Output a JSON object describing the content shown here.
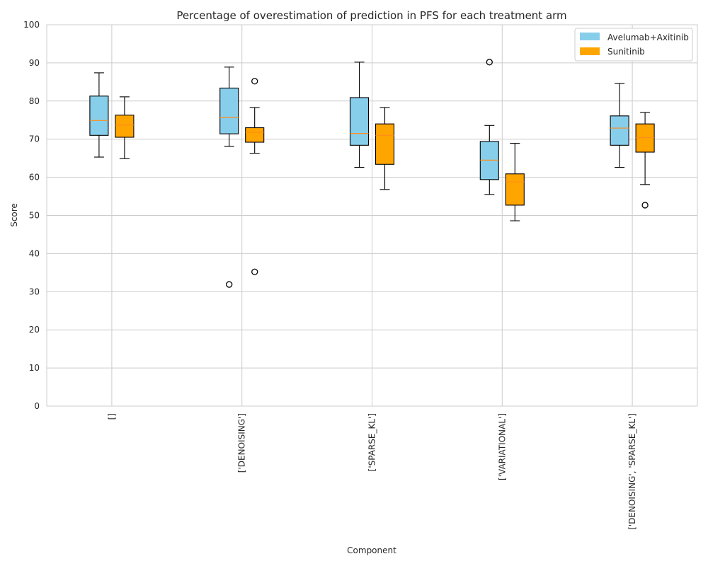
{
  "chart_data": {
    "type": "box",
    "title": "Percentage of overestimation of prediction in PFS for each treatment arm",
    "xlabel": "Component",
    "ylabel": "Score",
    "ylim": [
      0,
      100
    ],
    "yticks": [
      0,
      10,
      20,
      30,
      40,
      50,
      60,
      70,
      80,
      90,
      100
    ],
    "grid": true,
    "legend_position": "top-right",
    "categories": [
      "[]",
      "['DENOISING']",
      "['SPARSE_KL']",
      "['VARIATIONAL']",
      "['DENOISING', 'SPARSE_KL']"
    ],
    "series": [
      {
        "name": "Avelumab+Axitinib",
        "color": "#87ceeb",
        "boxes": [
          {
            "whisker_low": 65.3,
            "q1": 71.0,
            "median": 74.9,
            "q3": 81.3,
            "whisker_high": 87.4,
            "outliers": []
          },
          {
            "whisker_low": 68.1,
            "q1": 71.4,
            "median": 75.7,
            "q3": 83.4,
            "whisker_high": 88.9,
            "outliers": [
              31.9
            ]
          },
          {
            "whisker_low": 62.6,
            "q1": 68.4,
            "median": 71.5,
            "q3": 80.9,
            "whisker_high": 90.2,
            "outliers": []
          },
          {
            "whisker_low": 55.5,
            "q1": 59.4,
            "median": 64.5,
            "q3": 69.4,
            "whisker_high": 73.6,
            "outliers": [
              90.2
            ]
          },
          {
            "whisker_low": 62.6,
            "q1": 68.4,
            "median": 72.9,
            "q3": 76.1,
            "whisker_high": 84.6,
            "outliers": []
          }
        ]
      },
      {
        "name": "Sunitinib",
        "color": "#ffa500",
        "boxes": [
          {
            "whisker_low": 64.9,
            "q1": 70.5,
            "median": 73.7,
            "q3": 76.3,
            "whisker_high": 81.1,
            "outliers": []
          },
          {
            "whisker_low": 66.3,
            "q1": 69.2,
            "median": 71.8,
            "q3": 73.0,
            "whisker_high": 78.3,
            "outliers": [
              85.2,
              35.2
            ]
          },
          {
            "whisker_low": 56.8,
            "q1": 63.4,
            "median": 71.0,
            "q3": 74.0,
            "whisker_high": 78.3,
            "outliers": []
          },
          {
            "whisker_low": 48.6,
            "q1": 52.7,
            "median": 58.8,
            "q3": 60.9,
            "whisker_high": 68.9,
            "outliers": []
          },
          {
            "whisker_low": 58.1,
            "q1": 66.6,
            "median": 70.4,
            "q3": 74.0,
            "whisker_high": 77.0,
            "outliers": [
              52.7
            ]
          }
        ]
      }
    ]
  }
}
